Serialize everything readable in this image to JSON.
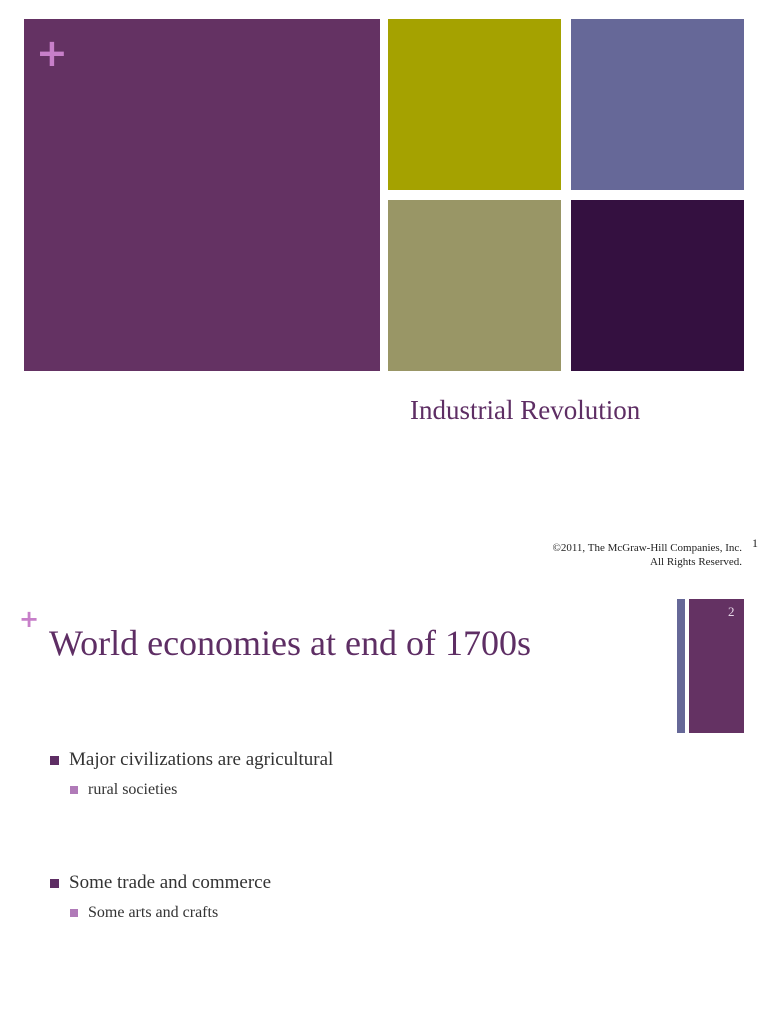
{
  "slide1": {
    "title": "Industrial Revolution",
    "copyright_line1": "©2011, The McGraw-Hill Companies, Inc.",
    "copyright_line2": "All Rights Reserved.",
    "slide_number": "1",
    "plus_glyph": "+"
  },
  "slide2": {
    "title": "World economies at end of 1700s",
    "slide_number": "2",
    "plus_glyph": "+",
    "bullets": [
      {
        "text": "Major civilizations are agricultural",
        "sub": "rural societies"
      },
      {
        "text": "Some trade and commerce",
        "sub": "Some arts and crafts"
      }
    ]
  },
  "colors": {
    "purple": "#643263",
    "olive": "#a5a200",
    "slate": "#666898",
    "khaki": "#999666",
    "dark_purple": "#341040",
    "plus": "#c77fc9"
  }
}
